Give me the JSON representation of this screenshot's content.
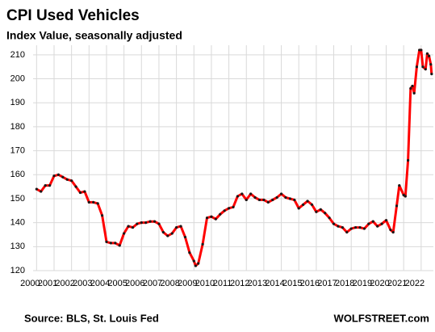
{
  "chart_data": {
    "type": "line",
    "title": "CPI Used Vehicles",
    "subtitle": "Index Value, seasonally adjusted",
    "source": "Source: BLS, St. Louis Fed",
    "brand": "WOLFSTREET.com",
    "x": [
      2000.0,
      2000.25,
      2000.5,
      2000.75,
      2001.0,
      2001.25,
      2001.5,
      2001.75,
      2002.0,
      2002.25,
      2002.5,
      2002.75,
      2003.0,
      2003.25,
      2003.5,
      2003.75,
      2004.0,
      2004.25,
      2004.5,
      2004.75,
      2005.0,
      2005.25,
      2005.5,
      2005.75,
      2006.0,
      2006.25,
      2006.5,
      2006.75,
      2007.0,
      2007.25,
      2007.5,
      2007.75,
      2008.0,
      2008.25,
      2008.5,
      2008.75,
      2009.0,
      2009.1,
      2009.25,
      2009.5,
      2009.75,
      2010.0,
      2010.25,
      2010.5,
      2010.75,
      2011.0,
      2011.25,
      2011.5,
      2011.75,
      2012.0,
      2012.25,
      2012.5,
      2012.75,
      2013.0,
      2013.25,
      2013.5,
      2013.75,
      2014.0,
      2014.25,
      2014.5,
      2014.75,
      2015.0,
      2015.25,
      2015.5,
      2015.75,
      2016.0,
      2016.25,
      2016.5,
      2016.75,
      2017.0,
      2017.25,
      2017.5,
      2017.75,
      2018.0,
      2018.25,
      2018.5,
      2018.75,
      2019.0,
      2019.25,
      2019.5,
      2019.75,
      2020.0,
      2020.25,
      2020.4,
      2020.6,
      2020.75,
      2021.0,
      2021.1,
      2021.25,
      2021.4,
      2021.5,
      2021.6,
      2021.75,
      2021.9,
      2022.0,
      2022.1,
      2022.25,
      2022.35,
      2022.45,
      2022.55,
      2022.6
    ],
    "series": [
      {
        "name": "CPI Used Vehicles",
        "color": "#ff0000",
        "marker_color": "#1a1a1a",
        "values": [
          154,
          153,
          155.5,
          155.5,
          159.5,
          160,
          159,
          158,
          157.5,
          155,
          152.5,
          153,
          148.5,
          148.5,
          148,
          143,
          132,
          131.5,
          131.5,
          130.5,
          135.5,
          138.5,
          138,
          139.5,
          140,
          140,
          140.5,
          140.5,
          139.5,
          136,
          134.5,
          135.5,
          138,
          138.5,
          134,
          127.5,
          124,
          122,
          123,
          131,
          142,
          142.5,
          141.5,
          143.5,
          145,
          146,
          146.5,
          151,
          152,
          149.5,
          152,
          150.5,
          149.5,
          149.5,
          148.5,
          149.5,
          150.5,
          152,
          150.5,
          150,
          149.5,
          146,
          147.5,
          149,
          147.5,
          144.5,
          145.5,
          144,
          142,
          139.5,
          138.5,
          138,
          136,
          137.5,
          138,
          138,
          137.5,
          139.5,
          140.5,
          138.5,
          139.5,
          141,
          137,
          136,
          147,
          155.5,
          151.5,
          151,
          166,
          196,
          197,
          194,
          205,
          212,
          212,
          205,
          204,
          210.5,
          209.5,
          206,
          202
        ]
      }
    ],
    "xlim": [
      1999.8,
      2022.7
    ],
    "xticks": [
      2000,
      2001,
      2002,
      2003,
      2004,
      2005,
      2006,
      2007,
      2008,
      2009,
      2010,
      2011,
      2012,
      2013,
      2014,
      2015,
      2016,
      2017,
      2018,
      2019,
      2020,
      2021,
      2022
    ],
    "ylim": [
      120,
      214
    ],
    "yticks": [
      120,
      130,
      140,
      150,
      160,
      170,
      180,
      190,
      200,
      210
    ],
    "grid": true
  }
}
